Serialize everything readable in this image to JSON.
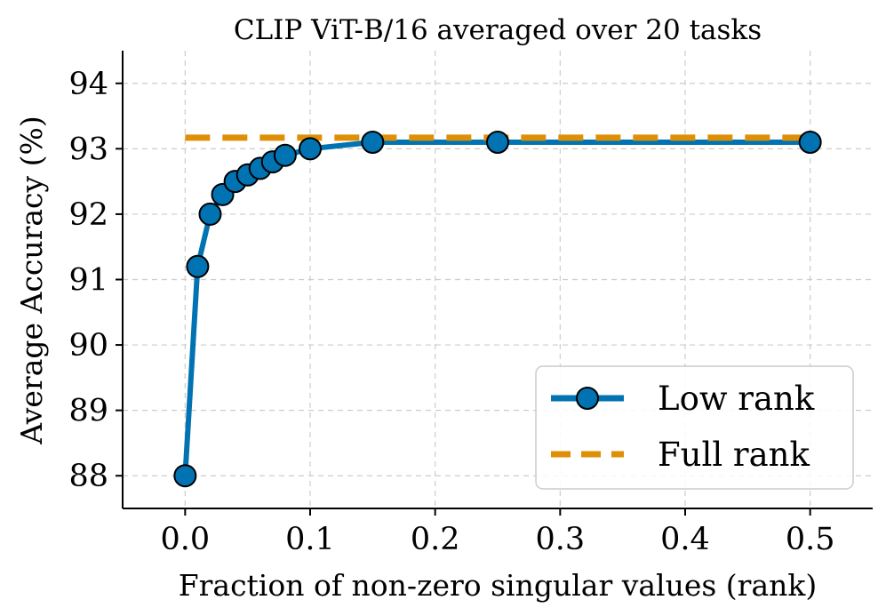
{
  "chart_data": {
    "type": "line",
    "title": "CLIP ViT-B/16 averaged over 20 tasks",
    "xlabel": "Fraction of non-zero singular values (rank)",
    "ylabel": "Average Accuracy (%)",
    "xlim": [
      -0.05,
      0.55
    ],
    "ylim": [
      87.5,
      94.5
    ],
    "xticks": [
      0.0,
      0.1,
      0.2,
      0.3,
      0.4,
      0.5
    ],
    "xtick_labels": [
      "0.0",
      "0.1",
      "0.2",
      "0.3",
      "0.4",
      "0.5"
    ],
    "yticks": [
      88,
      89,
      90,
      91,
      92,
      93,
      94
    ],
    "ytick_labels": [
      "88",
      "89",
      "90",
      "91",
      "92",
      "93",
      "94"
    ],
    "grid": true,
    "legend_position": "lower-right",
    "series": [
      {
        "name": "Low rank",
        "style": "solid-with-markers",
        "color": "#0173b2",
        "x": [
          0.0,
          0.01,
          0.02,
          0.03,
          0.04,
          0.05,
          0.06,
          0.07,
          0.08,
          0.1,
          0.15,
          0.25,
          0.5
        ],
        "y": [
          88.0,
          91.2,
          92.0,
          92.3,
          92.5,
          92.6,
          92.7,
          92.8,
          92.9,
          93.0,
          93.1,
          93.1,
          93.1
        ]
      },
      {
        "name": "Full rank",
        "style": "dashed",
        "color": "#de8f05",
        "x": [
          0.0,
          0.5
        ],
        "y": [
          93.17,
          93.17
        ]
      }
    ]
  }
}
